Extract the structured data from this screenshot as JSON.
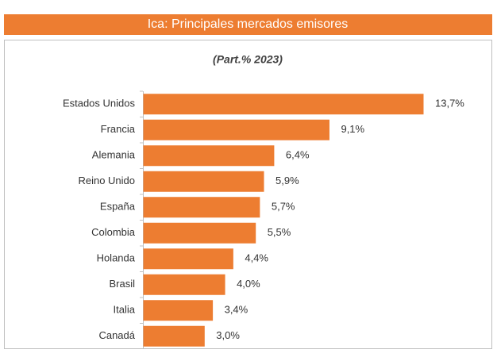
{
  "chart_data": {
    "type": "bar",
    "orientation": "horizontal",
    "title": "Ica: Principales mercados emisores",
    "subtitle": "(Part.% 2023)",
    "categories": [
      "Estados Unidos",
      "Francia",
      "Alemania",
      "Reino Unido",
      "España",
      "Colombia",
      "Holanda",
      "Brasil",
      "Italia",
      "Canadá"
    ],
    "values": [
      13.7,
      9.1,
      6.4,
      5.9,
      5.7,
      5.5,
      4.4,
      4.0,
      3.4,
      3.0
    ],
    "value_labels": [
      "13,7%",
      "9,1%",
      "6,4%",
      "5,9%",
      "5,7%",
      "5,5%",
      "4,4%",
      "4,0%",
      "3,4%",
      "3,0%"
    ],
    "color": "#ed7d31"
  }
}
